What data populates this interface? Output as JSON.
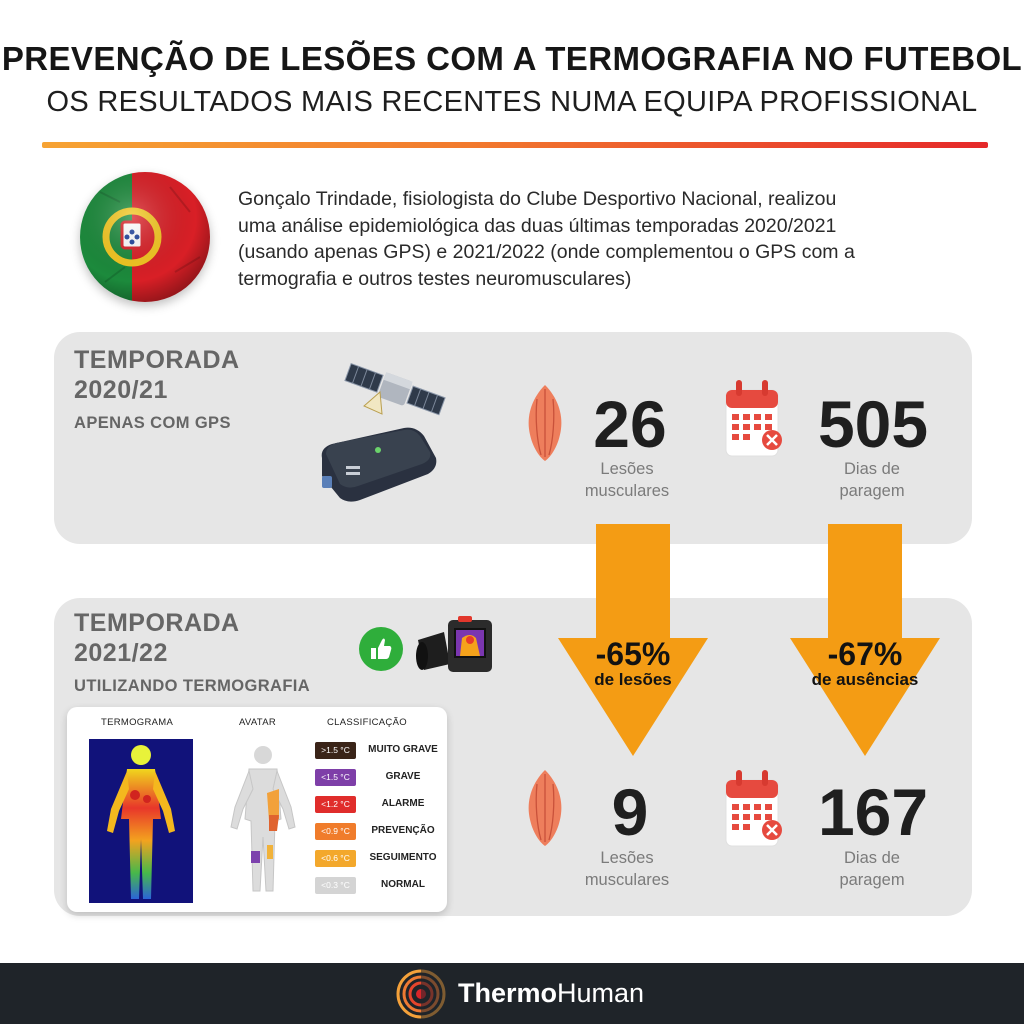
{
  "header": {
    "title": "PREVENÇÃO DE LESÕES COM A TERMOGRAFIA NO FUTEBOL",
    "subtitle": "OS RESULTADOS MAIS RECENTES NUMA EQUIPA PROFISSIONAL"
  },
  "intro": {
    "lines": [
      "Gonçalo Trindade, fisiologista do Clube Desportivo Nacional, realizou",
      "uma análise epidemiológica das duas últimas temporadas 2020/2021",
      "(usando apenas GPS) e 2021/2022 (onde complementou o GPS com a",
      "termografia e outros testes neuromusculares)"
    ]
  },
  "season1": {
    "title_line1": "TEMPORADA",
    "title_line2": "2020/21",
    "subtitle": "APENAS COM GPS",
    "injuries_value": "26",
    "injuries_label_1": "Lesões",
    "injuries_label_2": "musculares",
    "days_value": "505",
    "days_label_1": "Dias de",
    "days_label_2": "paragem"
  },
  "season2": {
    "title_line1": "TEMPORADA",
    "title_line2": "2021/22",
    "subtitle": "UTILIZANDO TERMOGRAFIA",
    "injuries_value": "9",
    "injuries_label_1": "Lesões",
    "injuries_label_2": "musculares",
    "days_value": "167",
    "days_label_1": "Dias de",
    "days_label_2": "paragem"
  },
  "changes": {
    "injuries_pct": "-65%",
    "injuries_label": "de lesões",
    "days_pct": "-67%",
    "days_label": "de ausências"
  },
  "thermo_card": {
    "col_thermogram": "TERMOGRAMA",
    "col_avatar": "AVATAR",
    "col_classification": "CLASSIFICAÇÃO",
    "classes": [
      {
        "chip": ">1.5 °C",
        "name": "MUITO GRAVE",
        "color": "#3a2418"
      },
      {
        "chip": "<1.5 °C",
        "name": "GRAVE",
        "color": "#7e3fa8"
      },
      {
        "chip": "<1.2 °C",
        "name": "ALARME",
        "color": "#e02d2b"
      },
      {
        "chip": "<0.9 °C",
        "name": "PREVENÇÃO",
        "color": "#f07c2b"
      },
      {
        "chip": "<0.6 °C",
        "name": "SEGUIMENTO",
        "color": "#f3a82c"
      },
      {
        "chip": "<0.3 °C",
        "name": "NORMAL",
        "color": "#d4d4d4"
      }
    ]
  },
  "footer": {
    "brand_part1": "Thermo",
    "brand_part2": "Human"
  },
  "colors": {
    "arrow": "#f49c14",
    "panel": "#e6e6e6",
    "footer": "#1f2429",
    "accent_red": "#e5282a",
    "accent_orange": "#f6a333"
  },
  "icons": [
    "portugal-ball-icon",
    "satellite-icon",
    "gps-tracker-icon",
    "muscle-icon",
    "calendar-cancel-icon",
    "thumbs-up-icon",
    "thermal-camera-icon",
    "down-arrow-icon",
    "thermohuman-logo-icon"
  ]
}
